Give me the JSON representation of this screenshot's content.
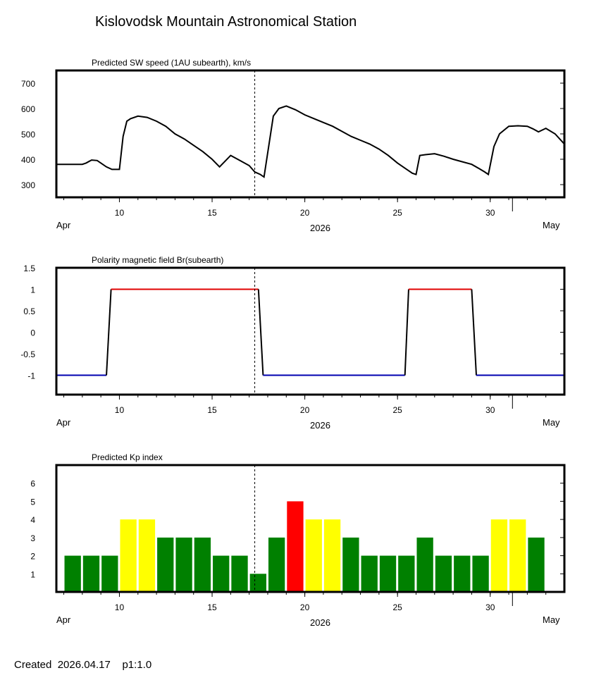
{
  "title": "Kislovodsk Mountain Astronomical Station",
  "footer": {
    "created_label": "Created",
    "created_date": "2026.04.17",
    "scale": "p1:1.0"
  },
  "colors": {
    "line": "#000000",
    "polarity_positive": "#e00000",
    "polarity_negative": "#0000b0",
    "kp_quiet": "#008000",
    "kp_active": "#ffff00",
    "kp_storm": "#ff0000"
  },
  "x_axis": {
    "range_days": [
      6.6,
      34.0
    ],
    "month_start_label": "Apr",
    "month_end_label": "May",
    "year_label": "2026",
    "ticks": [
      {
        "day": 10,
        "label": "10"
      },
      {
        "day": 15,
        "label": "15"
      },
      {
        "day": 20,
        "label": "20"
      },
      {
        "day": 25,
        "label": "25"
      },
      {
        "day": 30,
        "label": "30"
      }
    ],
    "today_day": 17.3,
    "may1_day": 31.2
  },
  "chart_data": [
    {
      "type": "line",
      "title": "Predicted SW speed (1AU subearth), km/s",
      "ylim": [
        250,
        750
      ],
      "yticks": [
        300,
        400,
        500,
        600,
        700
      ],
      "ytick_labels": [
        "300",
        "400",
        "500",
        "600",
        "700"
      ],
      "x": [
        6.6,
        8.0,
        8.2,
        8.5,
        8.8,
        9.0,
        9.3,
        9.6,
        10.0,
        10.2,
        10.4,
        10.6,
        11.0,
        11.5,
        12.0,
        12.5,
        13.0,
        13.5,
        14.0,
        14.5,
        15.0,
        15.2,
        15.4,
        16.0,
        16.5,
        17.0,
        17.3,
        17.6,
        17.7,
        17.8,
        18.3,
        18.6,
        19.0,
        19.5,
        20.0,
        20.5,
        21.0,
        21.5,
        22.0,
        22.5,
        23.0,
        23.5,
        24.0,
        24.5,
        25.0,
        25.5,
        25.8,
        26.0,
        26.2,
        26.5,
        27.0,
        27.5,
        28.0,
        28.5,
        29.0,
        29.4,
        29.7,
        29.9,
        30.2,
        30.5,
        31.0,
        31.5,
        32.0,
        32.3,
        32.6,
        33.0,
        33.5,
        34.0
      ],
      "values": [
        380,
        380,
        385,
        397,
        395,
        385,
        370,
        360,
        360,
        490,
        550,
        560,
        570,
        565,
        550,
        530,
        500,
        480,
        455,
        430,
        400,
        385,
        370,
        415,
        395,
        375,
        350,
        340,
        335,
        330,
        570,
        600,
        610,
        595,
        575,
        560,
        545,
        530,
        510,
        490,
        475,
        460,
        440,
        415,
        385,
        360,
        345,
        340,
        415,
        418,
        422,
        412,
        400,
        390,
        380,
        363,
        350,
        340,
        450,
        500,
        530,
        532,
        530,
        520,
        508,
        522,
        500,
        460
      ],
      "markers": {
        "today_day": 17.3
      }
    },
    {
      "type": "step",
      "title": "Polarity magnetic field  Br(subearth)",
      "ylim": [
        -1.45,
        1.5
      ],
      "yticks": [
        -1,
        -0.5,
        0,
        0.5,
        1,
        1.5
      ],
      "ytick_labels": [
        "-1",
        "-0.5",
        "0",
        "0.5",
        "1",
        "1.5"
      ],
      "segments": [
        {
          "from": 6.6,
          "to": 9.3,
          "value": -1
        },
        {
          "from": 9.55,
          "to": 17.5,
          "value": 1
        },
        {
          "from": 17.75,
          "to": 25.4,
          "value": -1
        },
        {
          "from": 25.6,
          "to": 29.0,
          "value": 1
        },
        {
          "from": 29.25,
          "to": 34.0,
          "value": -1
        }
      ],
      "markers": {
        "today_day": 17.3
      }
    },
    {
      "type": "bar",
      "title": "Predicted Kp index",
      "ylim": [
        0,
        7
      ],
      "yticks": [
        1,
        2,
        3,
        4,
        5,
        6
      ],
      "ytick_labels": [
        "1",
        "2",
        "3",
        "4",
        "5",
        "6"
      ],
      "bar_start_day": 7,
      "values": [
        2,
        2,
        2,
        4,
        4,
        3,
        3,
        3,
        2,
        2,
        1,
        3,
        5,
        4,
        4,
        3,
        2,
        2,
        2,
        3,
        2,
        2,
        2,
        4,
        4,
        3
      ],
      "markers": {
        "today_day": 17.3
      }
    }
  ]
}
